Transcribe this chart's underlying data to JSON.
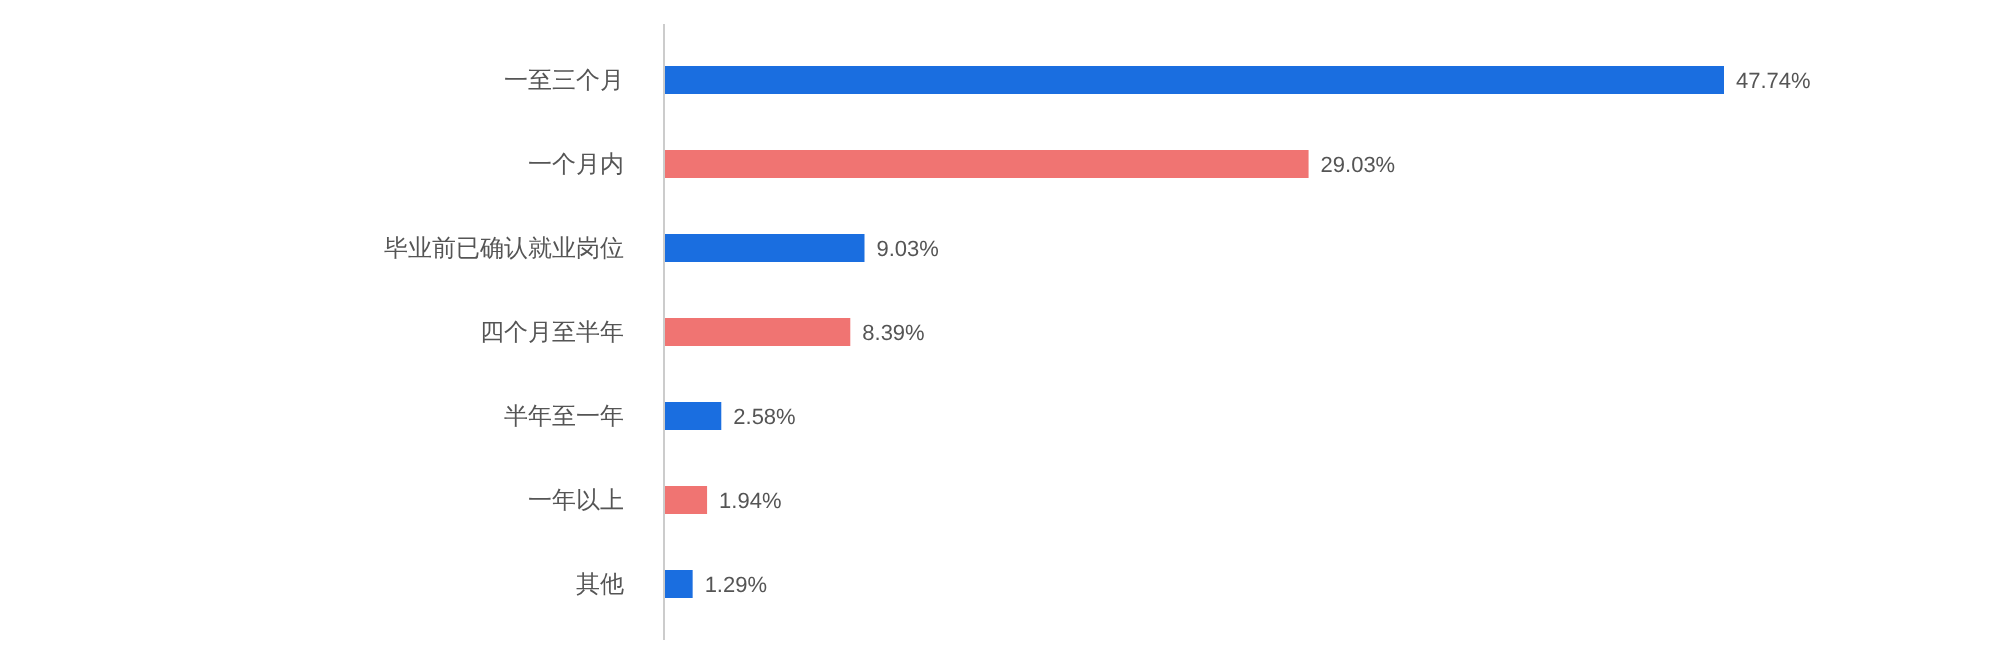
{
  "chart_data": {
    "type": "bar",
    "orientation": "horizontal",
    "categories": [
      "一至三个月",
      "一个月内",
      "毕业前已确认就业岗位",
      "四个月至半年",
      "半年至一年",
      "一年以上",
      "其他"
    ],
    "values": [
      47.74,
      29.03,
      9.03,
      8.39,
      2.58,
      1.94,
      1.29
    ],
    "colors": [
      "#1a6ee0",
      "#f07472",
      "#1a6ee0",
      "#f07472",
      "#1a6ee0",
      "#f07472",
      "#1a6ee0"
    ],
    "value_labels": [
      "47.74%",
      "29.03%",
      "9.03%",
      "8.39%",
      "2.58%",
      "1.94%",
      "1.29%"
    ]
  }
}
